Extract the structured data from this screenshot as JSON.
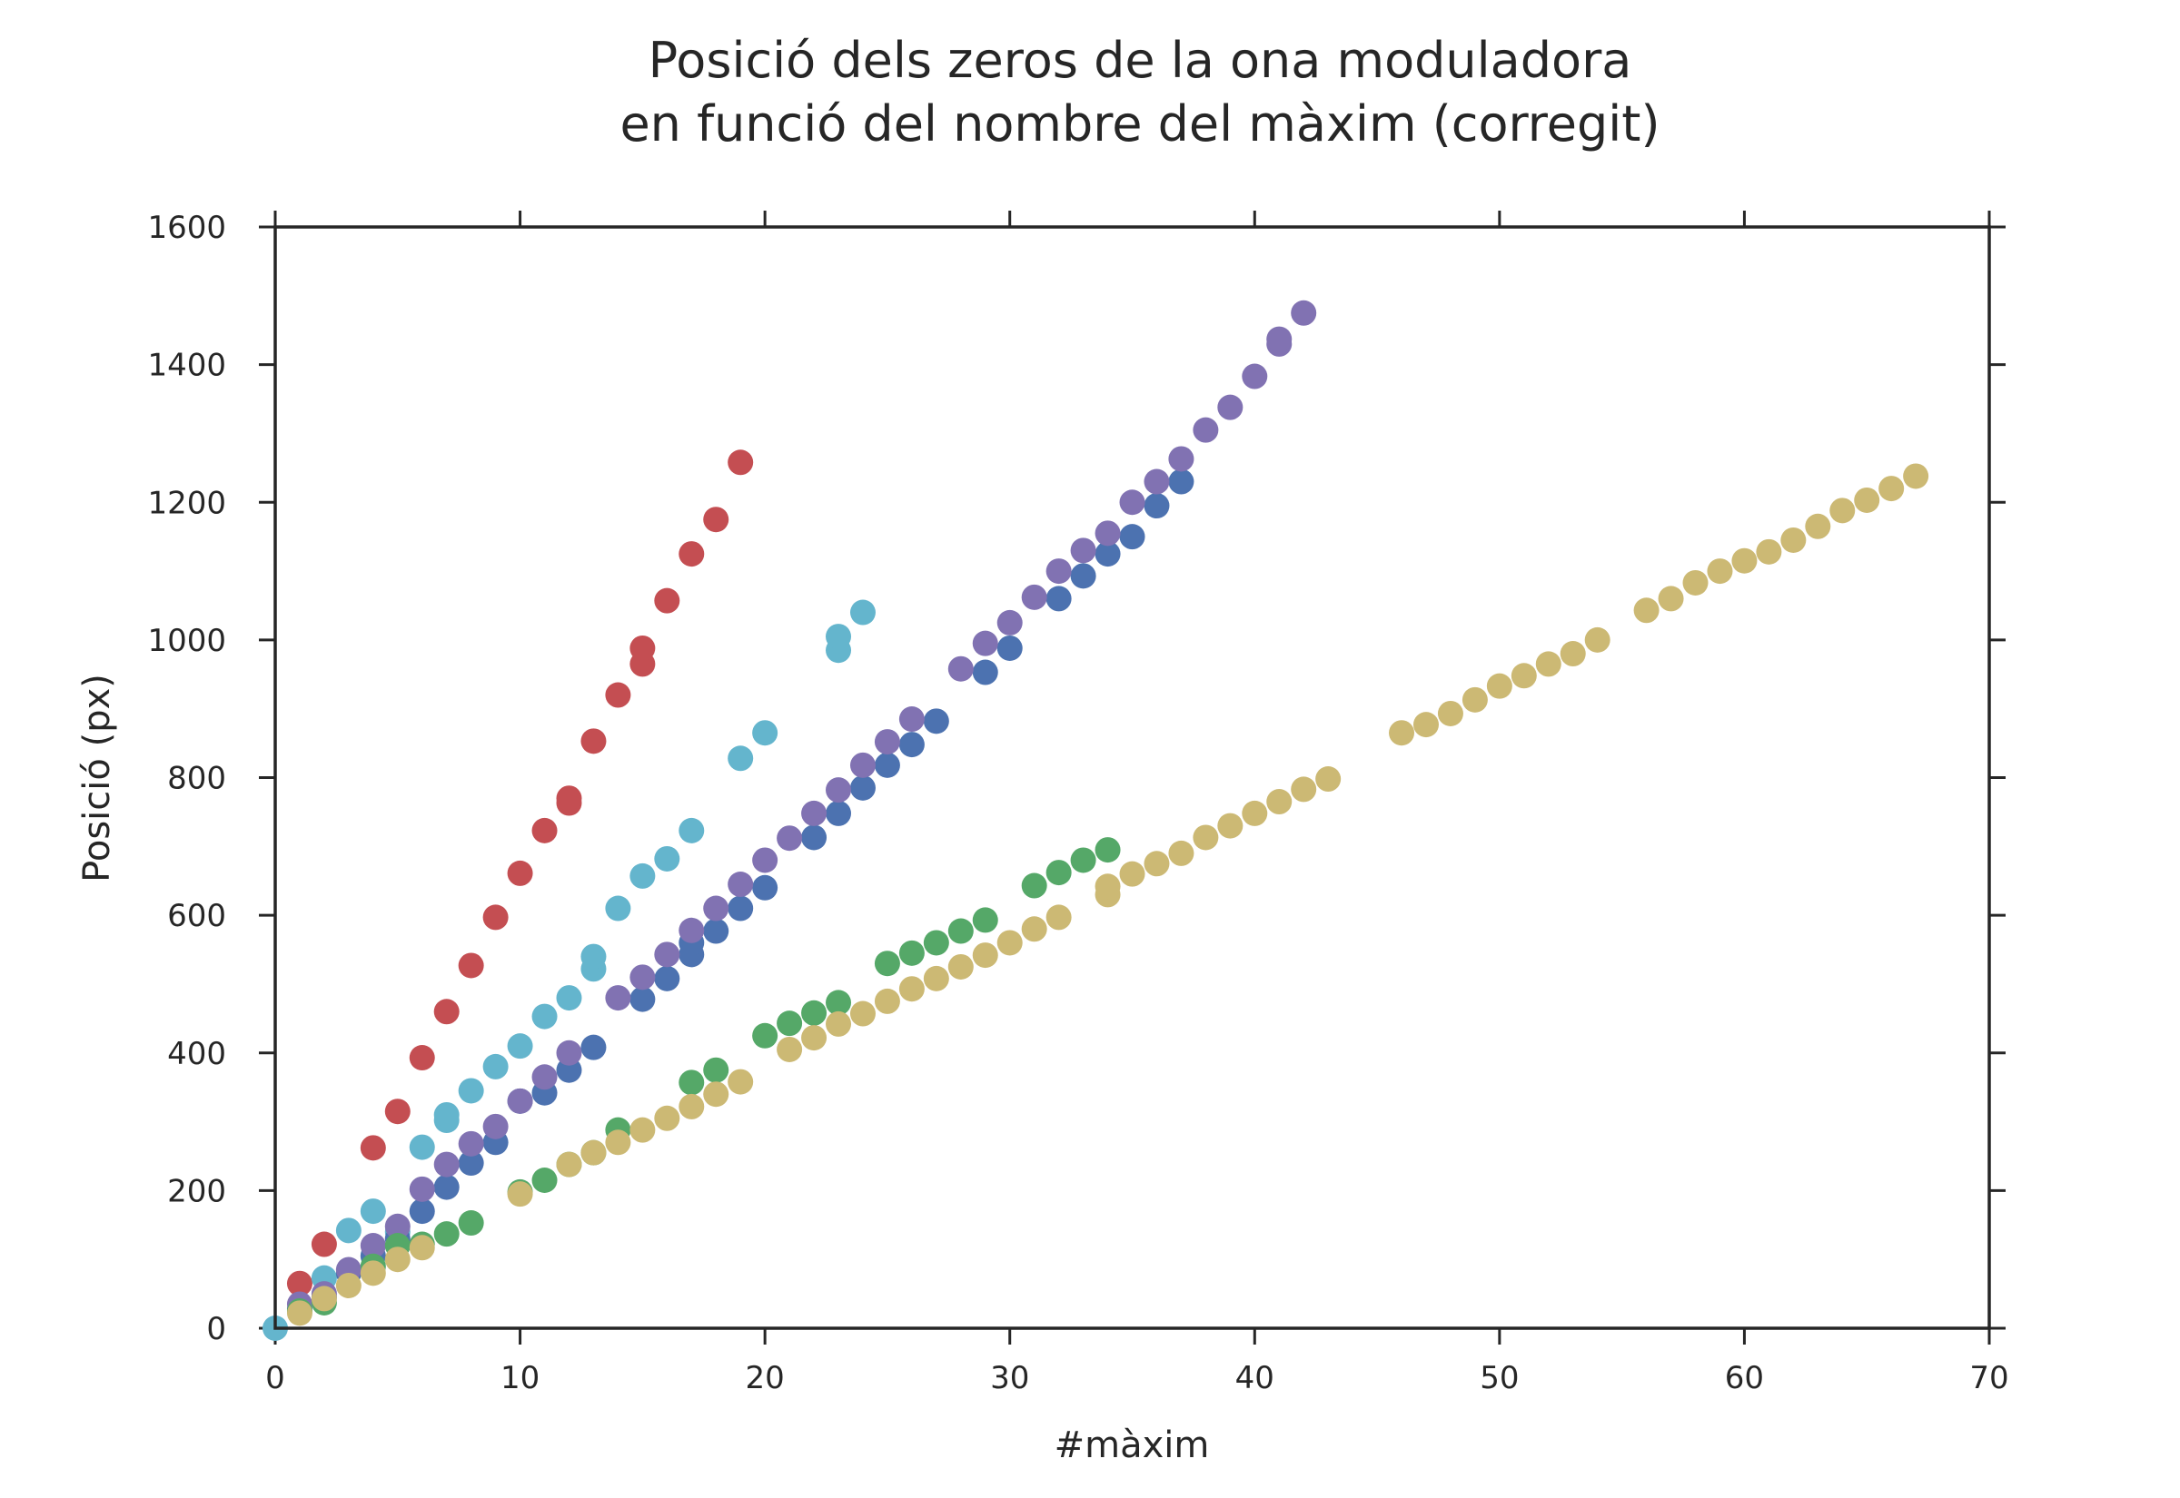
{
  "chart_data": {
    "type": "scatter",
    "title": [
      "Posició dels zeros de la ona moduladora",
      "en funció del nombre del màxim (corregit)"
    ],
    "xlabel": "#màxim",
    "ylabel": "Posició (px)",
    "xlim": [
      0,
      70
    ],
    "ylim": [
      0,
      1600
    ],
    "xticks": [
      0,
      10,
      20,
      30,
      40,
      50,
      60,
      70
    ],
    "yticks": [
      0,
      200,
      400,
      600,
      800,
      1000,
      1200,
      1400,
      1600
    ],
    "grid": false,
    "legend": "none",
    "series": [
      {
        "color": "#c44e52",
        "points": [
          [
            1,
            65
          ],
          [
            2,
            122
          ],
          [
            4,
            262
          ],
          [
            5,
            315
          ],
          [
            6,
            393
          ],
          [
            7,
            460
          ],
          [
            8,
            527
          ],
          [
            9,
            597
          ],
          [
            10,
            661
          ],
          [
            11,
            723
          ],
          [
            12,
            763
          ],
          [
            12,
            770
          ],
          [
            13,
            853
          ],
          [
            14,
            920
          ],
          [
            15,
            965
          ],
          [
            15,
            988
          ],
          [
            16,
            1057
          ],
          [
            17,
            1125
          ],
          [
            18,
            1175
          ],
          [
            19,
            1258
          ]
        ]
      },
      {
        "color": "#64b5cd",
        "points": [
          [
            0,
            0
          ],
          [
            2,
            73
          ],
          [
            3,
            142
          ],
          [
            4,
            170
          ],
          [
            5,
            140
          ],
          [
            6,
            263
          ],
          [
            7,
            302
          ],
          [
            7,
            310
          ],
          [
            8,
            345
          ],
          [
            9,
            380
          ],
          [
            10,
            410
          ],
          [
            11,
            453
          ],
          [
            12,
            480
          ],
          [
            13,
            522
          ],
          [
            13,
            540
          ],
          [
            14,
            610
          ],
          [
            15,
            657
          ],
          [
            16,
            682
          ],
          [
            17,
            723
          ],
          [
            19,
            828
          ],
          [
            20,
            865
          ],
          [
            23,
            985
          ],
          [
            23,
            1005
          ],
          [
            24,
            1040
          ]
        ]
      },
      {
        "color": "#4c72b0",
        "points": [
          [
            1,
            28
          ],
          [
            2,
            45
          ],
          [
            3,
            80
          ],
          [
            4,
            105
          ],
          [
            5,
            130
          ],
          [
            6,
            170
          ],
          [
            7,
            205
          ],
          [
            8,
            240
          ],
          [
            9,
            270
          ],
          [
            10,
            330
          ],
          [
            11,
            342
          ],
          [
            12,
            375
          ],
          [
            13,
            408
          ],
          [
            15,
            478
          ],
          [
            16,
            508
          ],
          [
            17,
            543
          ],
          [
            17,
            560
          ],
          [
            18,
            577
          ],
          [
            19,
            610
          ],
          [
            20,
            640
          ],
          [
            22,
            713
          ],
          [
            23,
            748
          ],
          [
            24,
            785
          ],
          [
            25,
            818
          ],
          [
            26,
            848
          ],
          [
            27,
            882
          ],
          [
            29,
            953
          ],
          [
            30,
            988
          ],
          [
            32,
            1060
          ],
          [
            33,
            1093
          ],
          [
            34,
            1125
          ],
          [
            35,
            1150
          ],
          [
            36,
            1195
          ],
          [
            37,
            1230
          ]
        ]
      },
      {
        "color": "#8172b2",
        "points": [
          [
            1,
            35
          ],
          [
            2,
            50
          ],
          [
            3,
            85
          ],
          [
            4,
            120
          ],
          [
            5,
            148
          ],
          [
            6,
            202
          ],
          [
            7,
            238
          ],
          [
            8,
            268
          ],
          [
            9,
            293
          ],
          [
            10,
            330
          ],
          [
            11,
            365
          ],
          [
            12,
            400
          ],
          [
            14,
            480
          ],
          [
            15,
            510
          ],
          [
            16,
            543
          ],
          [
            17,
            578
          ],
          [
            18,
            610
          ],
          [
            19,
            645
          ],
          [
            20,
            680
          ],
          [
            21,
            712
          ],
          [
            22,
            748
          ],
          [
            23,
            782
          ],
          [
            24,
            818
          ],
          [
            25,
            852
          ],
          [
            26,
            885
          ],
          [
            28,
            958
          ],
          [
            29,
            995
          ],
          [
            30,
            1025
          ],
          [
            31,
            1062
          ],
          [
            32,
            1100
          ],
          [
            33,
            1130
          ],
          [
            34,
            1155
          ],
          [
            35,
            1200
          ],
          [
            36,
            1230
          ],
          [
            37,
            1263
          ],
          [
            38,
            1305
          ],
          [
            39,
            1338
          ],
          [
            40,
            1383
          ],
          [
            41,
            1430
          ],
          [
            41,
            1437
          ],
          [
            42,
            1475
          ]
        ]
      },
      {
        "color": "#55a868",
        "points": [
          [
            1,
            25
          ],
          [
            2,
            37
          ],
          [
            4,
            90
          ],
          [
            5,
            120
          ],
          [
            6,
            122
          ],
          [
            7,
            137
          ],
          [
            8,
            153
          ],
          [
            10,
            198
          ],
          [
            11,
            215
          ],
          [
            12,
            238
          ],
          [
            13,
            255
          ],
          [
            14,
            288
          ],
          [
            17,
            357
          ],
          [
            18,
            375
          ],
          [
            20,
            425
          ],
          [
            21,
            443
          ],
          [
            22,
            458
          ],
          [
            23,
            473
          ],
          [
            25,
            530
          ],
          [
            26,
            545
          ],
          [
            27,
            560
          ],
          [
            28,
            577
          ],
          [
            29,
            593
          ],
          [
            31,
            643
          ],
          [
            32,
            662
          ],
          [
            33,
            680
          ],
          [
            34,
            695
          ]
        ]
      },
      {
        "color": "#ccb974",
        "points": [
          [
            1,
            22
          ],
          [
            2,
            43
          ],
          [
            3,
            62
          ],
          [
            4,
            80
          ],
          [
            5,
            100
          ],
          [
            6,
            117
          ],
          [
            10,
            195
          ],
          [
            12,
            238
          ],
          [
            13,
            255
          ],
          [
            14,
            270
          ],
          [
            15,
            288
          ],
          [
            16,
            305
          ],
          [
            17,
            322
          ],
          [
            18,
            340
          ],
          [
            19,
            358
          ],
          [
            21,
            405
          ],
          [
            22,
            422
          ],
          [
            23,
            442
          ],
          [
            24,
            457
          ],
          [
            25,
            475
          ],
          [
            26,
            493
          ],
          [
            27,
            508
          ],
          [
            28,
            525
          ],
          [
            29,
            542
          ],
          [
            30,
            560
          ],
          [
            31,
            580
          ],
          [
            32,
            597
          ],
          [
            34,
            630
          ],
          [
            34,
            642
          ],
          [
            35,
            660
          ],
          [
            36,
            675
          ],
          [
            37,
            690
          ],
          [
            38,
            713
          ],
          [
            39,
            730
          ],
          [
            40,
            748
          ],
          [
            41,
            765
          ],
          [
            42,
            783
          ],
          [
            43,
            798
          ],
          [
            46,
            865
          ],
          [
            47,
            877
          ],
          [
            48,
            893
          ],
          [
            49,
            913
          ],
          [
            50,
            933
          ],
          [
            51,
            948
          ],
          [
            52,
            965
          ],
          [
            53,
            980
          ],
          [
            54,
            1000
          ],
          [
            56,
            1043
          ],
          [
            57,
            1060
          ],
          [
            58,
            1083
          ],
          [
            59,
            1100
          ],
          [
            60,
            1115
          ],
          [
            61,
            1128
          ],
          [
            62,
            1145
          ],
          [
            63,
            1165
          ],
          [
            64,
            1188
          ],
          [
            65,
            1203
          ],
          [
            66,
            1220
          ],
          [
            67,
            1238
          ]
        ]
      }
    ]
  }
}
